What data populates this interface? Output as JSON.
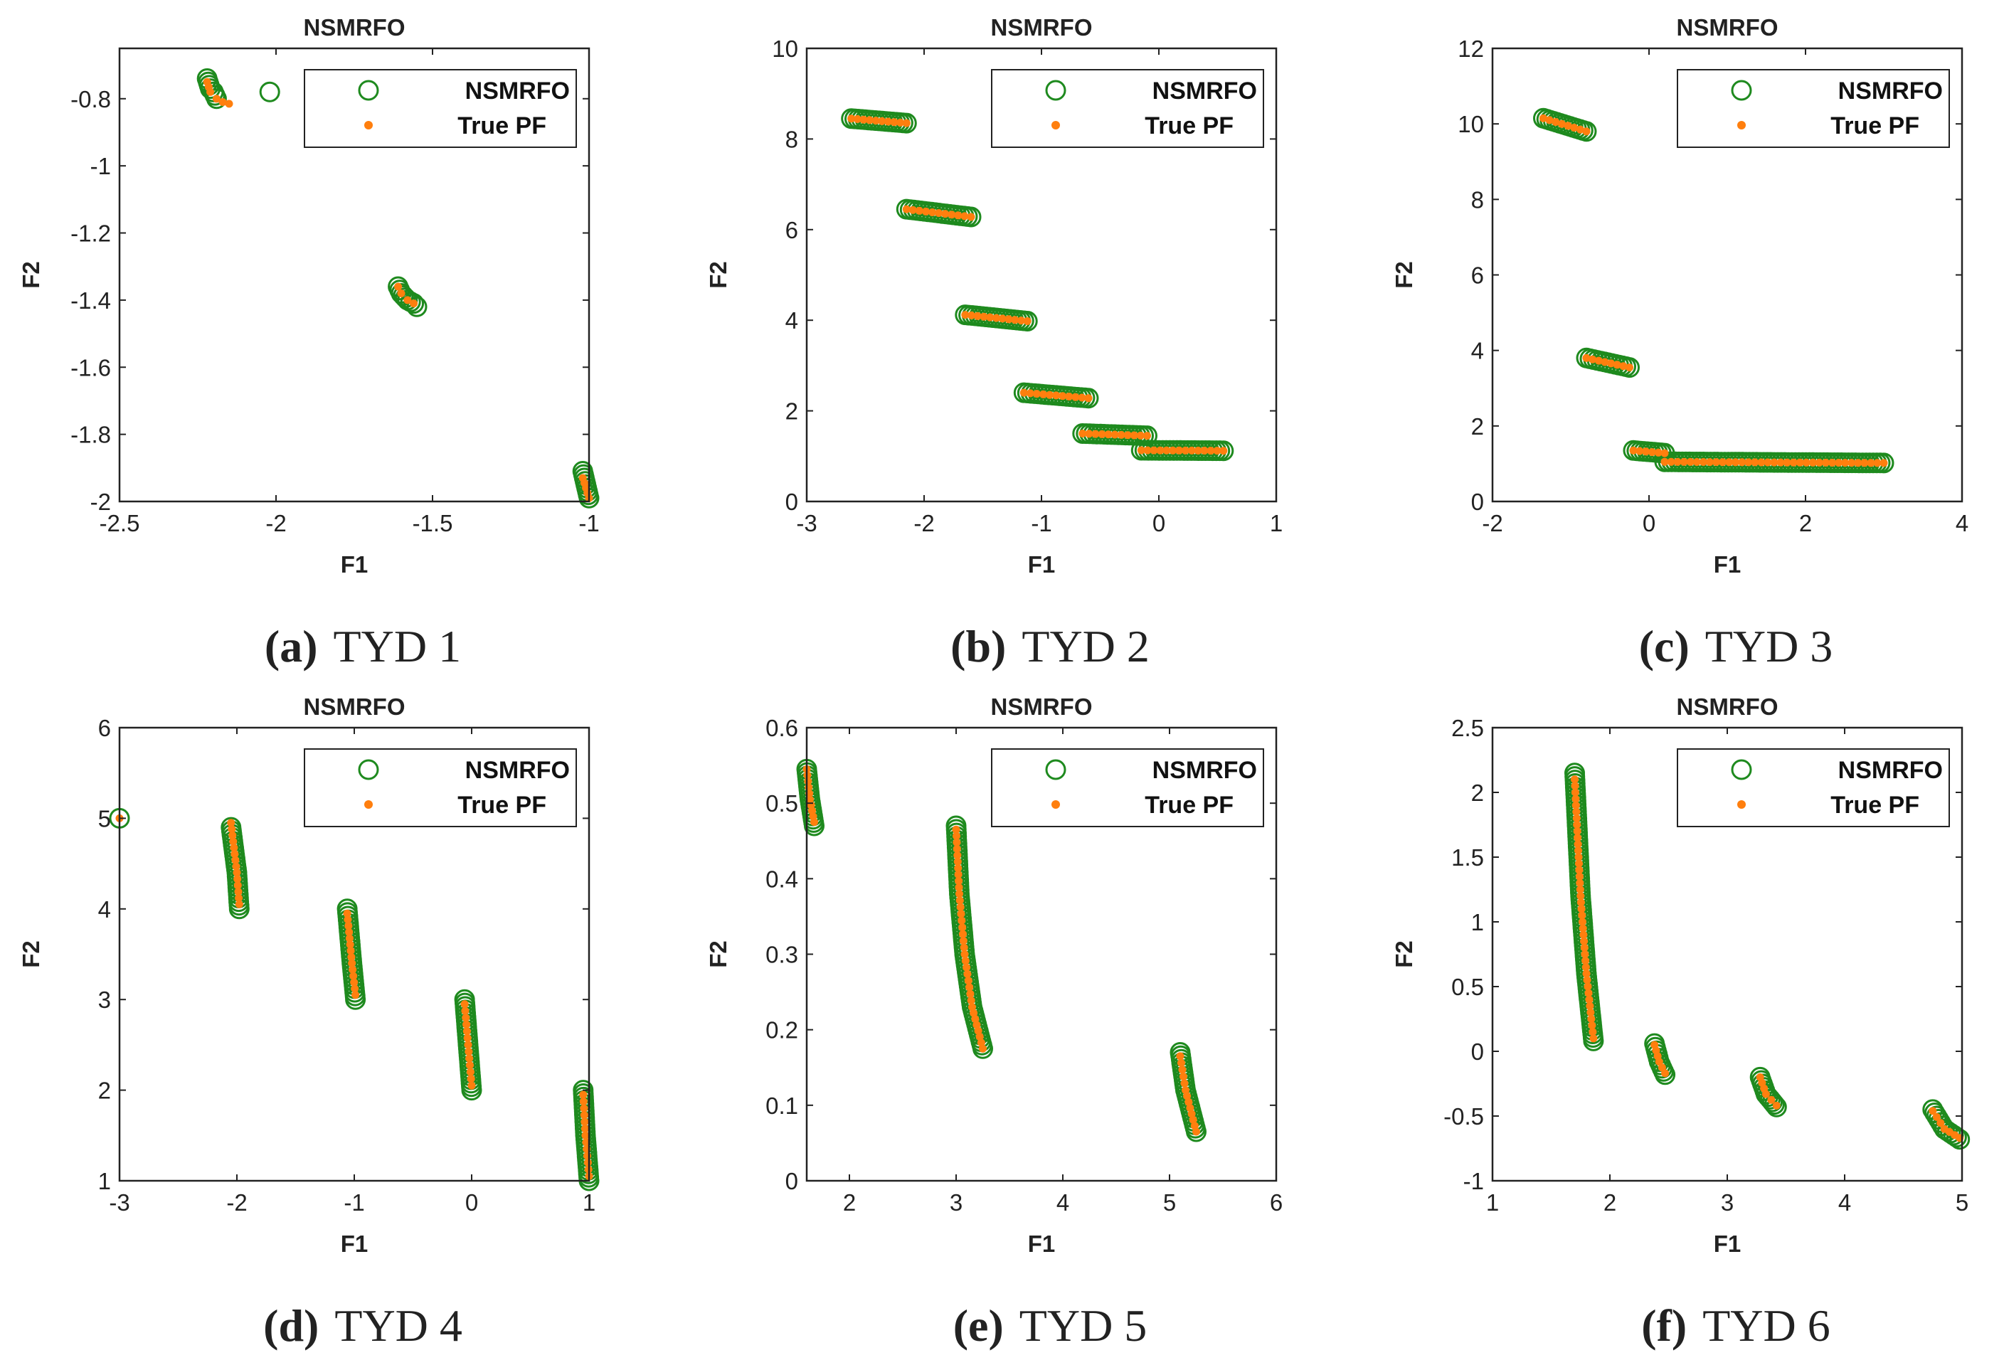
{
  "figure_colors": {
    "nsmrfo": "#1e8a1e",
    "true_pf": "#ff7f0e",
    "axes": "#222222"
  },
  "chart_data": [
    {
      "id": "a",
      "type": "scatter",
      "title": "NSMRFO",
      "xlabel": "F1",
      "ylabel": "F2",
      "xlim": [
        -2.5,
        -1
      ],
      "ylim": [
        -2,
        -0.65
      ],
      "xticks": [
        -2.5,
        -2,
        -1.5,
        -1
      ],
      "xtick_labels": [
        "-2.5",
        "-2",
        "-1.5",
        "-1"
      ],
      "yticks": [
        -2,
        -1.8,
        -1.6,
        -1.4,
        -1.2,
        -1,
        -0.8
      ],
      "ytick_labels": [
        "-2",
        "-1.8",
        "-1.6",
        "-1.4",
        "-1.2",
        "-1",
        "-0.8"
      ],
      "legend": {
        "position": "top-right",
        "entries": [
          "NSMRFO",
          "True PF"
        ]
      },
      "caption_letter": "(a)",
      "caption_text": "TYD 1",
      "series": [
        {
          "name": "NSMRFO",
          "marker": "open-circle",
          "segments": [
            [
              [
                -2.22,
                -0.74
              ],
              [
                -2.21,
                -0.77
              ],
              [
                -2.2,
                -0.78
              ],
              [
                -2.19,
                -0.8
              ]
            ],
            [
              [
                -2.02,
                -0.78
              ]
            ],
            [
              [
                -1.61,
                -1.36
              ],
              [
                -1.6,
                -1.38
              ],
              [
                -1.58,
                -1.4
              ],
              [
                -1.56,
                -1.41
              ],
              [
                -1.55,
                -1.42
              ]
            ],
            [
              [
                -1.02,
                -1.91
              ],
              [
                -1.01,
                -1.95
              ],
              [
                -1.005,
                -1.97
              ],
              [
                -1.0,
                -1.99
              ]
            ]
          ]
        },
        {
          "name": "True PF",
          "marker": "dot",
          "segments": [
            [
              [
                -2.22,
                -0.75
              ],
              [
                -2.21,
                -0.78
              ],
              [
                -2.19,
                -0.8
              ],
              [
                -2.17,
                -0.81
              ],
              [
                -2.15,
                -0.815
              ]
            ],
            [
              [
                -1.61,
                -1.36
              ],
              [
                -1.6,
                -1.38
              ],
              [
                -1.58,
                -1.4
              ],
              [
                -1.56,
                -1.41
              ]
            ],
            [
              [
                -1.02,
                -1.93
              ],
              [
                -1.01,
                -1.96
              ],
              [
                -1.0,
                -1.99
              ]
            ]
          ]
        }
      ]
    },
    {
      "id": "b",
      "type": "scatter",
      "title": "NSMRFO",
      "xlabel": "F1",
      "ylabel": "F2",
      "xlim": [
        -3,
        1
      ],
      "ylim": [
        0,
        10
      ],
      "xticks": [
        -3,
        -2,
        -1,
        0,
        1
      ],
      "xtick_labels": [
        "-3",
        "-2",
        "-1",
        "0",
        "1"
      ],
      "yticks": [
        0,
        2,
        4,
        6,
        8,
        10
      ],
      "ytick_labels": [
        "0",
        "2",
        "4",
        "6",
        "8",
        "10"
      ],
      "legend": {
        "position": "top-right",
        "entries": [
          "NSMRFO",
          "True PF"
        ]
      },
      "caption_letter": "(b)",
      "caption_text": "TYD 2",
      "series": [
        {
          "name": "NSMRFO",
          "marker": "open-circle",
          "segments": [
            [
              [
                -2.62,
                8.45
              ],
              [
                -2.15,
                8.35
              ]
            ],
            [
              [
                -2.15,
                6.45
              ],
              [
                -1.6,
                6.28
              ]
            ],
            [
              [
                -1.65,
                4.12
              ],
              [
                -1.12,
                3.98
              ]
            ],
            [
              [
                -1.15,
                2.4
              ],
              [
                -0.6,
                2.28
              ]
            ],
            [
              [
                -0.65,
                1.5
              ],
              [
                -0.1,
                1.45
              ]
            ],
            [
              [
                -0.15,
                1.13
              ],
              [
                0.55,
                1.12
              ]
            ]
          ]
        },
        {
          "name": "True PF",
          "marker": "dot",
          "segments": [
            [
              [
                -2.62,
                8.45
              ],
              [
                -2.15,
                8.35
              ]
            ],
            [
              [
                -2.15,
                6.45
              ],
              [
                -1.6,
                6.28
              ]
            ],
            [
              [
                -1.65,
                4.12
              ],
              [
                -1.12,
                3.98
              ]
            ],
            [
              [
                -1.15,
                2.4
              ],
              [
                -0.6,
                2.28
              ]
            ],
            [
              [
                -0.65,
                1.5
              ],
              [
                -0.1,
                1.45
              ]
            ],
            [
              [
                -0.15,
                1.13
              ],
              [
                0.55,
                1.12
              ]
            ]
          ]
        }
      ]
    },
    {
      "id": "c",
      "type": "scatter",
      "title": "NSMRFO",
      "xlabel": "F1",
      "ylabel": "F2",
      "xlim": [
        -2,
        4
      ],
      "ylim": [
        0,
        12
      ],
      "xticks": [
        -2,
        0,
        2,
        4
      ],
      "xtick_labels": [
        "-2",
        "0",
        "2",
        "4"
      ],
      "yticks": [
        0,
        2,
        4,
        6,
        8,
        10,
        12
      ],
      "ytick_labels": [
        "0",
        "2",
        "4",
        "6",
        "8",
        "10",
        "12"
      ],
      "legend": {
        "position": "top-right",
        "entries": [
          "NSMRFO",
          "True PF"
        ]
      },
      "caption_letter": "(c)",
      "caption_text": "TYD 3",
      "series": [
        {
          "name": "NSMRFO",
          "marker": "open-circle",
          "segments": [
            [
              [
                -1.35,
                10.15
              ],
              [
                -0.8,
                9.8
              ]
            ],
            [
              [
                -0.8,
                3.8
              ],
              [
                -0.25,
                3.55
              ]
            ],
            [
              [
                -0.2,
                1.35
              ],
              [
                0.2,
                1.28
              ]
            ],
            [
              [
                0.2,
                1.05
              ],
              [
                3.0,
                1.02
              ]
            ]
          ]
        },
        {
          "name": "True PF",
          "marker": "dot",
          "segments": [
            [
              [
                -1.35,
                10.15
              ],
              [
                -0.8,
                9.8
              ]
            ],
            [
              [
                -0.8,
                3.8
              ],
              [
                -0.25,
                3.55
              ]
            ],
            [
              [
                -0.2,
                1.35
              ],
              [
                0.2,
                1.28
              ]
            ],
            [
              [
                0.2,
                1.05
              ],
              [
                3.0,
                1.02
              ]
            ]
          ]
        }
      ]
    },
    {
      "id": "d",
      "type": "scatter",
      "title": "NSMRFO",
      "xlabel": "F1",
      "ylabel": "F2",
      "xlim": [
        -3,
        1
      ],
      "ylim": [
        1,
        6
      ],
      "xticks": [
        -3,
        -2,
        -1,
        0,
        1
      ],
      "xtick_labels": [
        "-3",
        "-2",
        "-1",
        "0",
        "1"
      ],
      "yticks": [
        1,
        2,
        3,
        4,
        5,
        6
      ],
      "ytick_labels": [
        "1",
        "2",
        "3",
        "4",
        "5",
        "6"
      ],
      "legend": {
        "position": "top-right",
        "entries": [
          "NSMRFO",
          "True PF"
        ]
      },
      "caption_letter": "(d)",
      "caption_text": "TYD 4",
      "series": [
        {
          "name": "NSMRFO",
          "marker": "open-circle",
          "segments": [
            [
              [
                -3.0,
                5.0
              ]
            ],
            [
              [
                -2.05,
                4.9
              ],
              [
                -2.0,
                4.4
              ],
              [
                -1.98,
                4.0
              ]
            ],
            [
              [
                -1.06,
                4.0
              ],
              [
                -1.02,
                3.4
              ],
              [
                -0.99,
                3.0
              ]
            ],
            [
              [
                -0.06,
                3.0
              ],
              [
                -0.03,
                2.5
              ],
              [
                0.0,
                2.0
              ]
            ],
            [
              [
                0.95,
                2.0
              ],
              [
                0.97,
                1.5
              ],
              [
                1.0,
                1.0
              ]
            ]
          ]
        },
        {
          "name": "True PF",
          "marker": "dot",
          "segments": [
            [
              [
                -3.0,
                5.0
              ]
            ],
            [
              [
                -2.05,
                4.95
              ],
              [
                -2.0,
                4.4
              ],
              [
                -1.98,
                4.05
              ]
            ],
            [
              [
                -1.06,
                3.95
              ],
              [
                -1.02,
                3.4
              ],
              [
                -0.99,
                3.05
              ]
            ],
            [
              [
                -0.06,
                2.95
              ],
              [
                -0.03,
                2.5
              ],
              [
                0.0,
                2.05
              ]
            ],
            [
              [
                0.95,
                1.95
              ],
              [
                0.97,
                1.5
              ],
              [
                1.0,
                1.05
              ]
            ]
          ]
        }
      ]
    },
    {
      "id": "e",
      "type": "scatter",
      "title": "NSMRFO",
      "xlabel": "F1",
      "ylabel": "F2",
      "xlim": [
        1.6,
        6
      ],
      "ylim": [
        0,
        0.6
      ],
      "xticks": [
        2,
        3,
        4,
        5,
        6
      ],
      "xtick_labels": [
        "2",
        "3",
        "4",
        "5",
        "6"
      ],
      "yticks": [
        0,
        0.1,
        0.2,
        0.3,
        0.4,
        0.5,
        0.6
      ],
      "ytick_labels": [
        "0",
        "0.1",
        "0.2",
        "0.3",
        "0.4",
        "0.5",
        "0.6"
      ],
      "legend": {
        "position": "top-right",
        "entries": [
          "NSMRFO",
          "True PF"
        ]
      },
      "caption_letter": "(e)",
      "caption_text": "TYD 5",
      "series": [
        {
          "name": "NSMRFO",
          "marker": "open-circle",
          "segments": [
            [
              [
                1.6,
                0.545
              ],
              [
                1.63,
                0.505
              ],
              [
                1.67,
                0.47
              ]
            ],
            [
              [
                3.0,
                0.47
              ],
              [
                3.03,
                0.38
              ],
              [
                3.08,
                0.3
              ],
              [
                3.15,
                0.23
              ],
              [
                3.25,
                0.175
              ]
            ],
            [
              [
                5.1,
                0.17
              ],
              [
                5.15,
                0.12
              ],
              [
                5.25,
                0.065
              ]
            ]
          ]
        },
        {
          "name": "True PF",
          "marker": "dot",
          "segments": [
            [
              [
                1.6,
                0.545
              ],
              [
                1.63,
                0.505
              ],
              [
                1.67,
                0.475
              ]
            ],
            [
              [
                3.0,
                0.465
              ],
              [
                3.03,
                0.38
              ],
              [
                3.08,
                0.3
              ],
              [
                3.15,
                0.23
              ],
              [
                3.25,
                0.175
              ]
            ],
            [
              [
                5.1,
                0.165
              ],
              [
                5.15,
                0.12
              ],
              [
                5.25,
                0.065
              ]
            ]
          ]
        }
      ]
    },
    {
      "id": "f",
      "type": "scatter",
      "title": "NSMRFO",
      "xlabel": "F1",
      "ylabel": "F2",
      "xlim": [
        1,
        5
      ],
      "ylim": [
        -1,
        2.5
      ],
      "xticks": [
        1,
        2,
        3,
        4,
        5
      ],
      "xtick_labels": [
        "1",
        "2",
        "3",
        "4",
        "5"
      ],
      "yticks": [
        -1,
        -0.5,
        0,
        0.5,
        1,
        1.5,
        2,
        2.5
      ],
      "ytick_labels": [
        "-1",
        "-0.5",
        "0",
        "0.5",
        "1",
        "1.5",
        "2",
        "2.5"
      ],
      "legend": {
        "position": "top-right",
        "entries": [
          "NSMRFO",
          "True PF"
        ]
      },
      "caption_letter": "(f)",
      "caption_text": "TYD 6",
      "series": [
        {
          "name": "NSMRFO",
          "marker": "open-circle",
          "segments": [
            [
              [
                1.7,
                2.15
              ],
              [
                1.75,
                1.2
              ],
              [
                1.8,
                0.6
              ],
              [
                1.86,
                0.08
              ]
            ],
            [
              [
                2.38,
                0.06
              ],
              [
                2.42,
                -0.08
              ],
              [
                2.47,
                -0.18
              ]
            ],
            [
              [
                3.28,
                -0.2
              ],
              [
                3.33,
                -0.33
              ],
              [
                3.42,
                -0.43
              ]
            ],
            [
              [
                4.75,
                -0.45
              ],
              [
                4.85,
                -0.6
              ],
              [
                4.98,
                -0.68
              ]
            ]
          ]
        },
        {
          "name": "True PF",
          "marker": "dot",
          "segments": [
            [
              [
                1.7,
                2.1
              ],
              [
                1.75,
                1.2
              ],
              [
                1.8,
                0.6
              ],
              [
                1.86,
                0.1
              ]
            ],
            [
              [
                2.38,
                0.05
              ],
              [
                2.42,
                -0.08
              ],
              [
                2.47,
                -0.17
              ]
            ],
            [
              [
                3.28,
                -0.2
              ],
              [
                3.33,
                -0.33
              ],
              [
                3.42,
                -0.42
              ]
            ],
            [
              [
                4.75,
                -0.46
              ],
              [
                4.85,
                -0.6
              ],
              [
                4.98,
                -0.67
              ]
            ]
          ]
        }
      ]
    }
  ]
}
